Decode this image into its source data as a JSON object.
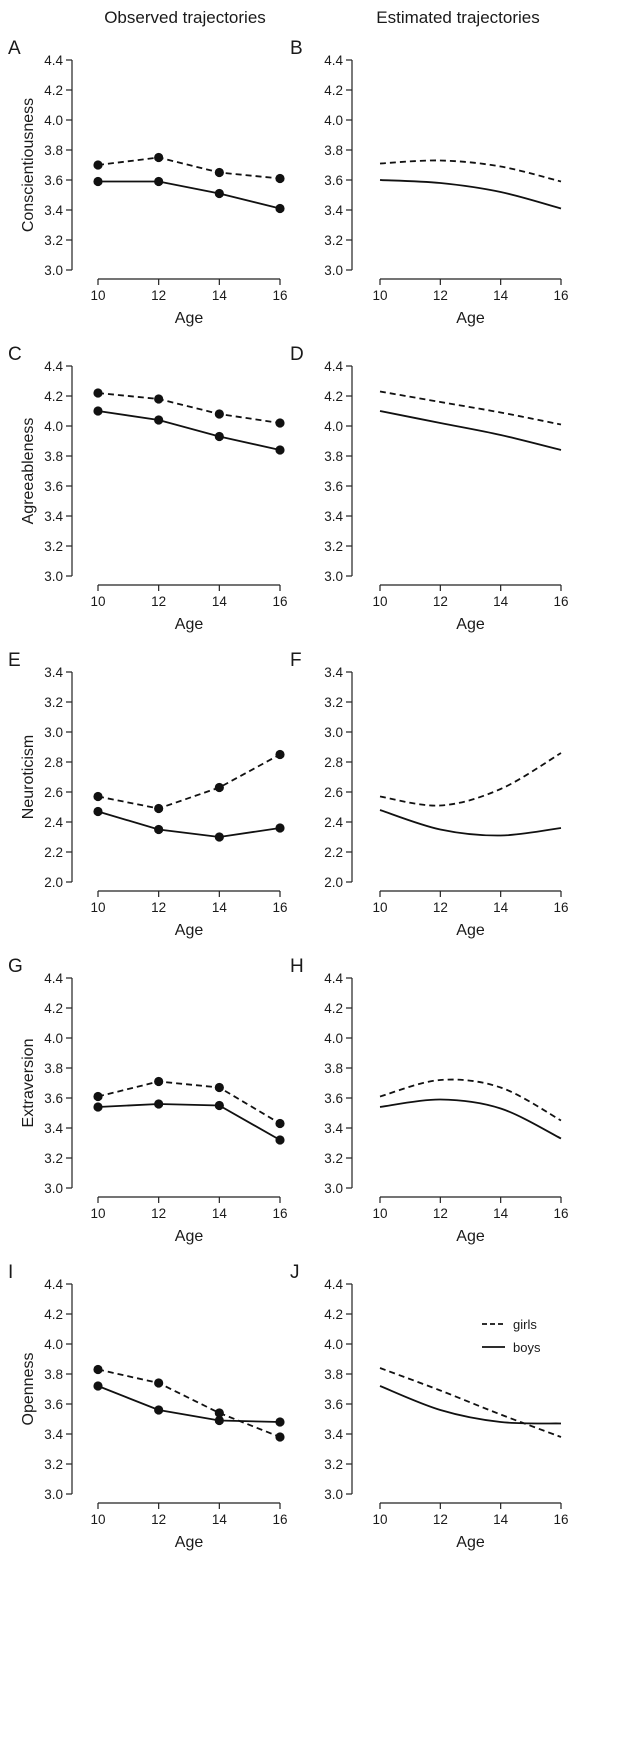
{
  "column_titles": [
    "Observed trajectories",
    "Estimated trajectories"
  ],
  "legend": {
    "items": [
      {
        "label": "girls",
        "style": "dashed"
      },
      {
        "label": "boys",
        "style": "solid"
      }
    ]
  },
  "chart_data": [
    {
      "type": "line",
      "panel": "A",
      "ylabel": "Conscientiousness",
      "xlabel": "Age",
      "x": [
        10,
        12,
        14,
        16
      ],
      "xlim": [
        10,
        16
      ],
      "ylim": [
        3.0,
        4.4
      ],
      "yticks": [
        "3.0",
        "3.2",
        "3.4",
        "3.6",
        "3.8",
        "4.0",
        "4.2",
        "4.4"
      ],
      "markers": true,
      "series": [
        {
          "name": "girls",
          "style": "dashed",
          "values": [
            3.7,
            3.75,
            3.65,
            3.61
          ]
        },
        {
          "name": "boys",
          "style": "solid",
          "values": [
            3.59,
            3.59,
            3.51,
            3.41
          ]
        }
      ]
    },
    {
      "type": "line",
      "panel": "B",
      "ylabel": "",
      "xlabel": "Age",
      "x": [
        10,
        12,
        14,
        16
      ],
      "xlim": [
        10,
        16
      ],
      "ylim": [
        3.0,
        4.4
      ],
      "yticks": [
        "3.0",
        "3.2",
        "3.4",
        "3.6",
        "3.8",
        "4.0",
        "4.2",
        "4.4"
      ],
      "markers": false,
      "series": [
        {
          "name": "girls",
          "style": "dashed",
          "values": [
            3.71,
            3.73,
            3.69,
            3.59
          ]
        },
        {
          "name": "boys",
          "style": "solid",
          "values": [
            3.6,
            3.58,
            3.52,
            3.41
          ]
        }
      ]
    },
    {
      "type": "line",
      "panel": "C",
      "ylabel": "Agreeableness",
      "xlabel": "Age",
      "x": [
        10,
        12,
        14,
        16
      ],
      "xlim": [
        10,
        16
      ],
      "ylim": [
        3.0,
        4.4
      ],
      "yticks": [
        "3.0",
        "3.2",
        "3.4",
        "3.6",
        "3.8",
        "4.0",
        "4.2",
        "4.4"
      ],
      "markers": true,
      "series": [
        {
          "name": "girls",
          "style": "dashed",
          "values": [
            4.22,
            4.18,
            4.08,
            4.02
          ]
        },
        {
          "name": "boys",
          "style": "solid",
          "values": [
            4.1,
            4.04,
            3.93,
            3.84
          ]
        }
      ]
    },
    {
      "type": "line",
      "panel": "D",
      "ylabel": "",
      "xlabel": "Age",
      "x": [
        10,
        12,
        14,
        16
      ],
      "xlim": [
        10,
        16
      ],
      "ylim": [
        3.0,
        4.4
      ],
      "yticks": [
        "3.0",
        "3.2",
        "3.4",
        "3.6",
        "3.8",
        "4.0",
        "4.2",
        "4.4"
      ],
      "markers": false,
      "series": [
        {
          "name": "girls",
          "style": "dashed",
          "values": [
            4.23,
            4.16,
            4.09,
            4.01
          ]
        },
        {
          "name": "boys",
          "style": "solid",
          "values": [
            4.1,
            4.02,
            3.94,
            3.84
          ]
        }
      ]
    },
    {
      "type": "line",
      "panel": "E",
      "ylabel": "Neuroticism",
      "xlabel": "Age",
      "x": [
        10,
        12,
        14,
        16
      ],
      "xlim": [
        10,
        16
      ],
      "ylim": [
        2.0,
        3.4
      ],
      "yticks": [
        "2.0",
        "2.2",
        "2.4",
        "2.6",
        "2.8",
        "3.0",
        "3.2",
        "3.4"
      ],
      "markers": true,
      "series": [
        {
          "name": "girls",
          "style": "dashed",
          "values": [
            2.57,
            2.49,
            2.63,
            2.85
          ]
        },
        {
          "name": "boys",
          "style": "solid",
          "values": [
            2.47,
            2.35,
            2.3,
            2.36
          ]
        }
      ]
    },
    {
      "type": "line",
      "panel": "F",
      "ylabel": "",
      "xlabel": "Age",
      "x": [
        10,
        12,
        14,
        16
      ],
      "xlim": [
        10,
        16
      ],
      "ylim": [
        2.0,
        3.4
      ],
      "yticks": [
        "2.0",
        "2.2",
        "2.4",
        "2.6",
        "2.8",
        "3.0",
        "3.2",
        "3.4"
      ],
      "markers": false,
      "series": [
        {
          "name": "girls",
          "style": "dashed",
          "values": [
            2.57,
            2.51,
            2.62,
            2.86
          ]
        },
        {
          "name": "boys",
          "style": "solid",
          "values": [
            2.48,
            2.35,
            2.31,
            2.36
          ]
        }
      ]
    },
    {
      "type": "line",
      "panel": "G",
      "ylabel": "Extraversion",
      "xlabel": "Age",
      "x": [
        10,
        12,
        14,
        16
      ],
      "xlim": [
        10,
        16
      ],
      "ylim": [
        3.0,
        4.4
      ],
      "yticks": [
        "3.0",
        "3.2",
        "3.4",
        "3.6",
        "3.8",
        "4.0",
        "4.2",
        "4.4"
      ],
      "markers": true,
      "series": [
        {
          "name": "girls",
          "style": "dashed",
          "values": [
            3.61,
            3.71,
            3.67,
            3.43
          ]
        },
        {
          "name": "boys",
          "style": "solid",
          "values": [
            3.54,
            3.56,
            3.55,
            3.32
          ]
        }
      ]
    },
    {
      "type": "line",
      "panel": "H",
      "ylabel": "",
      "xlabel": "Age",
      "x": [
        10,
        12,
        14,
        16
      ],
      "xlim": [
        10,
        16
      ],
      "ylim": [
        3.0,
        4.4
      ],
      "yticks": [
        "3.0",
        "3.2",
        "3.4",
        "3.6",
        "3.8",
        "4.0",
        "4.2",
        "4.4"
      ],
      "markers": false,
      "series": [
        {
          "name": "girls",
          "style": "dashed",
          "values": [
            3.61,
            3.72,
            3.67,
            3.45
          ]
        },
        {
          "name": "boys",
          "style": "solid",
          "values": [
            3.54,
            3.59,
            3.53,
            3.33
          ]
        }
      ]
    },
    {
      "type": "line",
      "panel": "I",
      "ylabel": "Openness",
      "xlabel": "Age",
      "x": [
        10,
        12,
        14,
        16
      ],
      "xlim": [
        10,
        16
      ],
      "ylim": [
        3.0,
        4.4
      ],
      "yticks": [
        "3.0",
        "3.2",
        "3.4",
        "3.6",
        "3.8",
        "4.0",
        "4.2",
        "4.4"
      ],
      "markers": true,
      "series": [
        {
          "name": "girls",
          "style": "dashed",
          "values": [
            3.83,
            3.74,
            3.54,
            3.38
          ]
        },
        {
          "name": "boys",
          "style": "solid",
          "values": [
            3.72,
            3.56,
            3.49,
            3.48
          ]
        }
      ]
    },
    {
      "type": "line",
      "panel": "J",
      "ylabel": "",
      "xlabel": "Age",
      "x": [
        10,
        12,
        14,
        16
      ],
      "xlim": [
        10,
        16
      ],
      "ylim": [
        3.0,
        4.4
      ],
      "yticks": [
        "3.0",
        "3.2",
        "3.4",
        "3.6",
        "3.8",
        "4.0",
        "4.2",
        "4.4"
      ],
      "markers": false,
      "series": [
        {
          "name": "girls",
          "style": "dashed",
          "values": [
            3.84,
            3.69,
            3.53,
            3.38
          ]
        },
        {
          "name": "boys",
          "style": "solid",
          "values": [
            3.72,
            3.56,
            3.48,
            3.47
          ]
        }
      ]
    }
  ]
}
